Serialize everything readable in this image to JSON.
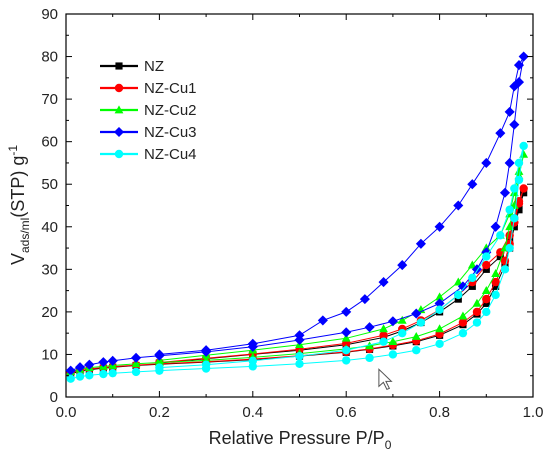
{
  "chart_data": {
    "type": "line",
    "xlabel": {
      "main": "Relative Pressure P/P",
      "sub": "0"
    },
    "ylabel": {
      "v": "V",
      "sub": "ads/ml",
      "mid": "(STP) g",
      "sup": "-1"
    },
    "xlim": [
      0,
      1.0
    ],
    "ylim": [
      0,
      90
    ],
    "x_ticks": [
      "0.0",
      "0.2",
      "0.4",
      "0.6",
      "0.8",
      "1.0"
    ],
    "y_ticks": [
      "0",
      "10",
      "20",
      "30",
      "40",
      "50",
      "60",
      "70",
      "80",
      "90"
    ],
    "grid": false,
    "legend_position": "top-left",
    "series": [
      {
        "name": "NZ",
        "color": "#000000",
        "marker": "square",
        "adsorption": [
          [
            0.01,
            5.5
          ],
          [
            0.03,
            6.0
          ],
          [
            0.05,
            6.4
          ],
          [
            0.08,
            6.8
          ],
          [
            0.1,
            7.0
          ],
          [
            0.15,
            7.4
          ],
          [
            0.2,
            7.7
          ],
          [
            0.3,
            8.2
          ],
          [
            0.4,
            8.8
          ],
          [
            0.5,
            9.6
          ],
          [
            0.6,
            10.5
          ],
          [
            0.65,
            11.2
          ],
          [
            0.7,
            12.0
          ],
          [
            0.75,
            13.0
          ],
          [
            0.8,
            14.5
          ],
          [
            0.85,
            17.0
          ],
          [
            0.88,
            19.5
          ],
          [
            0.9,
            22.0
          ],
          [
            0.92,
            26.0
          ],
          [
            0.94,
            31.0
          ],
          [
            0.95,
            35.0
          ],
          [
            0.96,
            40.0
          ],
          [
            0.97,
            44.0
          ],
          [
            0.98,
            48.0
          ]
        ],
        "desorption": [
          [
            0.97,
            45.0
          ],
          [
            0.96,
            41.0
          ],
          [
            0.95,
            37.0
          ],
          [
            0.93,
            33.0
          ],
          [
            0.9,
            30.0
          ],
          [
            0.87,
            26.0
          ],
          [
            0.84,
            23.0
          ],
          [
            0.8,
            20.0
          ],
          [
            0.76,
            17.5
          ],
          [
            0.72,
            15.5
          ],
          [
            0.68,
            14.0
          ],
          [
            0.6,
            12.3
          ],
          [
            0.5,
            11.0
          ],
          [
            0.4,
            10.0
          ],
          [
            0.3,
            9.0
          ],
          [
            0.2,
            8.0
          ]
        ]
      },
      {
        "name": "NZ-Cu1",
        "color": "#ff0000",
        "marker": "circle",
        "adsorption": [
          [
            0.01,
            5.8
          ],
          [
            0.03,
            6.2
          ],
          [
            0.05,
            6.6
          ],
          [
            0.08,
            6.9
          ],
          [
            0.1,
            7.1
          ],
          [
            0.15,
            7.5
          ],
          [
            0.2,
            7.8
          ],
          [
            0.3,
            8.3
          ],
          [
            0.4,
            8.9
          ],
          [
            0.5,
            9.7
          ],
          [
            0.6,
            10.6
          ],
          [
            0.65,
            11.3
          ],
          [
            0.7,
            12.2
          ],
          [
            0.75,
            13.2
          ],
          [
            0.8,
            14.8
          ],
          [
            0.85,
            17.5
          ],
          [
            0.88,
            20.0
          ],
          [
            0.9,
            23.0
          ],
          [
            0.92,
            27.0
          ],
          [
            0.94,
            32.0
          ],
          [
            0.95,
            36.0
          ],
          [
            0.96,
            41.0
          ],
          [
            0.97,
            45.5
          ],
          [
            0.98,
            49.0
          ]
        ],
        "desorption": [
          [
            0.97,
            46.0
          ],
          [
            0.96,
            42.0
          ],
          [
            0.95,
            38.0
          ],
          [
            0.93,
            34.0
          ],
          [
            0.9,
            31.0
          ],
          [
            0.87,
            27.0
          ],
          [
            0.84,
            24.0
          ],
          [
            0.8,
            20.5
          ],
          [
            0.76,
            18.0
          ],
          [
            0.72,
            16.0
          ],
          [
            0.68,
            14.5
          ],
          [
            0.6,
            12.6
          ],
          [
            0.5,
            11.2
          ],
          [
            0.4,
            10.1
          ],
          [
            0.3,
            9.1
          ],
          [
            0.2,
            8.1
          ]
        ]
      },
      {
        "name": "NZ-Cu2",
        "color": "#00ff00",
        "marker": "triangle",
        "adsorption": [
          [
            0.01,
            6.0
          ],
          [
            0.03,
            6.5
          ],
          [
            0.05,
            6.9
          ],
          [
            0.08,
            7.2
          ],
          [
            0.1,
            7.4
          ],
          [
            0.15,
            7.8
          ],
          [
            0.2,
            8.1
          ],
          [
            0.3,
            8.6
          ],
          [
            0.4,
            9.3
          ],
          [
            0.5,
            10.2
          ],
          [
            0.6,
            11.3
          ],
          [
            0.65,
            12.0
          ],
          [
            0.7,
            13.0
          ],
          [
            0.75,
            14.2
          ],
          [
            0.8,
            16.0
          ],
          [
            0.85,
            19.0
          ],
          [
            0.88,
            22.0
          ],
          [
            0.9,
            25.0
          ],
          [
            0.92,
            29.0
          ],
          [
            0.94,
            35.0
          ],
          [
            0.95,
            40.0
          ],
          [
            0.96,
            45.0
          ],
          [
            0.97,
            52.0
          ],
          [
            0.98,
            57.0
          ]
        ],
        "desorption": [
          [
            0.97,
            53.0
          ],
          [
            0.96,
            48.0
          ],
          [
            0.95,
            43.0
          ],
          [
            0.93,
            38.0
          ],
          [
            0.9,
            35.0
          ],
          [
            0.87,
            31.0
          ],
          [
            0.84,
            27.0
          ],
          [
            0.8,
            23.5
          ],
          [
            0.76,
            20.5
          ],
          [
            0.72,
            18.0
          ],
          [
            0.68,
            16.0
          ],
          [
            0.6,
            13.8
          ],
          [
            0.5,
            12.3
          ],
          [
            0.4,
            11.0
          ],
          [
            0.3,
            9.8
          ],
          [
            0.2,
            8.6
          ]
        ]
      },
      {
        "name": "NZ-Cu3",
        "color": "#0000ff",
        "marker": "diamond",
        "adsorption": [
          [
            0.01,
            6.2
          ],
          [
            0.03,
            7.0
          ],
          [
            0.05,
            7.6
          ],
          [
            0.08,
            8.2
          ],
          [
            0.1,
            8.5
          ],
          [
            0.15,
            9.2
          ],
          [
            0.2,
            9.7
          ],
          [
            0.3,
            10.6
          ],
          [
            0.4,
            11.8
          ],
          [
            0.5,
            13.4
          ],
          [
            0.6,
            15.2
          ],
          [
            0.65,
            16.4
          ],
          [
            0.7,
            17.8
          ],
          [
            0.75,
            19.6
          ],
          [
            0.8,
            22.0
          ],
          [
            0.85,
            26.0
          ],
          [
            0.88,
            30.0
          ],
          [
            0.9,
            34.0
          ],
          [
            0.92,
            40.0
          ],
          [
            0.94,
            48.0
          ],
          [
            0.95,
            55.0
          ],
          [
            0.96,
            64.0
          ],
          [
            0.97,
            74.0
          ],
          [
            0.98,
            80.0
          ]
        ],
        "desorption": [
          [
            0.97,
            78.0
          ],
          [
            0.96,
            73.0
          ],
          [
            0.95,
            67.0
          ],
          [
            0.93,
            62.0
          ],
          [
            0.9,
            55.0
          ],
          [
            0.87,
            50.0
          ],
          [
            0.84,
            45.0
          ],
          [
            0.8,
            40.0
          ],
          [
            0.76,
            36.0
          ],
          [
            0.72,
            31.0
          ],
          [
            0.68,
            27.0
          ],
          [
            0.64,
            23.0
          ],
          [
            0.6,
            20.0
          ],
          [
            0.55,
            18.0
          ],
          [
            0.5,
            14.5
          ],
          [
            0.4,
            12.5
          ],
          [
            0.3,
            11.0
          ],
          [
            0.2,
            10.0
          ]
        ]
      },
      {
        "name": "NZ-Cu4",
        "color": "#00ffff",
        "marker": "circle",
        "adsorption": [
          [
            0.01,
            4.3
          ],
          [
            0.03,
            4.8
          ],
          [
            0.05,
            5.1
          ],
          [
            0.08,
            5.4
          ],
          [
            0.1,
            5.6
          ],
          [
            0.15,
            5.9
          ],
          [
            0.2,
            6.2
          ],
          [
            0.3,
            6.7
          ],
          [
            0.4,
            7.2
          ],
          [
            0.5,
            7.8
          ],
          [
            0.6,
            8.6
          ],
          [
            0.65,
            9.2
          ],
          [
            0.7,
            10.0
          ],
          [
            0.75,
            11.0
          ],
          [
            0.8,
            12.5
          ],
          [
            0.85,
            15.0
          ],
          [
            0.88,
            17.5
          ],
          [
            0.9,
            20.0
          ],
          [
            0.92,
            24.0
          ],
          [
            0.94,
            30.0
          ],
          [
            0.95,
            35.0
          ],
          [
            0.96,
            42.0
          ],
          [
            0.97,
            51.0
          ],
          [
            0.98,
            59.0
          ]
        ],
        "desorption": [
          [
            0.97,
            55.0
          ],
          [
            0.96,
            49.0
          ],
          [
            0.95,
            44.0
          ],
          [
            0.93,
            38.0
          ],
          [
            0.9,
            33.0
          ],
          [
            0.87,
            28.0
          ],
          [
            0.84,
            24.0
          ],
          [
            0.8,
            20.5
          ],
          [
            0.76,
            17.5
          ],
          [
            0.72,
            15.0
          ],
          [
            0.68,
            13.0
          ],
          [
            0.6,
            11.0
          ],
          [
            0.5,
            9.6
          ],
          [
            0.4,
            8.5
          ],
          [
            0.3,
            7.6
          ],
          [
            0.2,
            6.9
          ]
        ]
      }
    ]
  },
  "cursor": {
    "icon": "mouse-pointer-icon",
    "x": 0.67,
    "y": 6.5
  }
}
